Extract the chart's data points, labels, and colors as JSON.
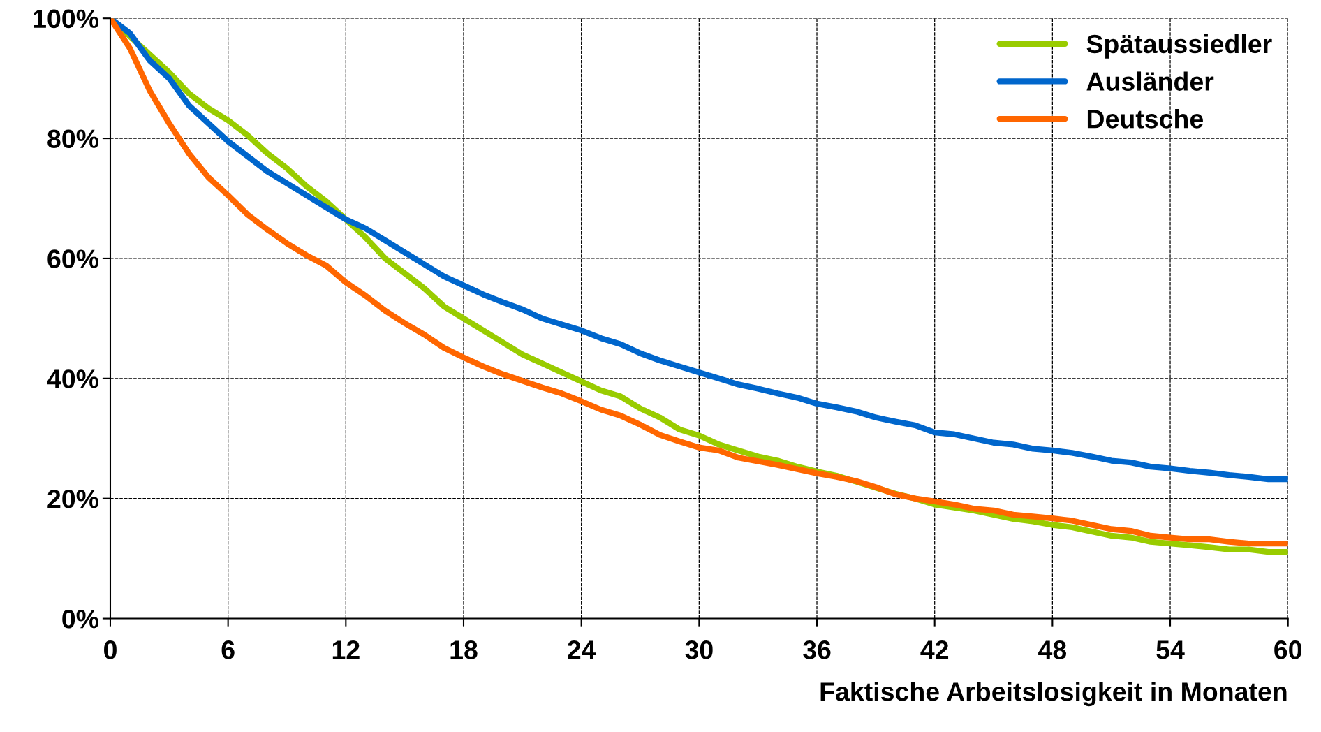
{
  "chart_data": {
    "type": "line",
    "xlabel": "Faktische Arbeitslosigkeit in Monaten",
    "x": [
      0,
      1,
      2,
      3,
      4,
      5,
      6,
      7,
      8,
      9,
      10,
      11,
      12,
      13,
      14,
      15,
      16,
      17,
      18,
      19,
      20,
      21,
      22,
      23,
      24,
      25,
      26,
      27,
      28,
      29,
      30,
      31,
      32,
      33,
      34,
      35,
      36,
      37,
      38,
      39,
      40,
      41,
      42,
      43,
      44,
      45,
      46,
      47,
      48,
      49,
      50,
      51,
      52,
      53,
      54,
      55,
      56,
      57,
      58,
      59,
      60
    ],
    "series": [
      {
        "name": "Spätaussiedler",
        "color": "#99cc00",
        "values": [
          100,
          97,
          94,
          91,
          87.5,
          85,
          83,
          80.5,
          77.5,
          75,
          72,
          69.5,
          66.5,
          63.5,
          60,
          57.5,
          55,
          52,
          50,
          48,
          46,
          44,
          42.5,
          41,
          39.5,
          38,
          37,
          35,
          33.5,
          31.5,
          30.5,
          29,
          28,
          27,
          26.3,
          25.3,
          24.5,
          23.8,
          22.8,
          21.8,
          20.8,
          20,
          19,
          18.5,
          18,
          17.3,
          16.6,
          16.2,
          15.6,
          15.2,
          14.5,
          13.8,
          13.5,
          12.8,
          12.5,
          12.2,
          11.9,
          11.5,
          11.5,
          11.1,
          11.1
        ]
      },
      {
        "name": "Ausländer",
        "color": "#0066cc",
        "values": [
          100,
          97.5,
          93,
          90,
          85.5,
          82.5,
          79.5,
          77,
          74.5,
          72.5,
          70.5,
          68.5,
          66.5,
          65,
          63,
          61,
          59,
          57,
          55.5,
          54,
          52.7,
          51.5,
          50,
          49,
          48,
          46.7,
          45.7,
          44.2,
          43,
          42,
          41,
          40,
          39,
          38.3,
          37.5,
          36.8,
          35.8,
          35.2,
          34.5,
          33.5,
          32.8,
          32.2,
          31,
          30.7,
          30,
          29.3,
          29,
          28.3,
          28,
          27.6,
          27,
          26.3,
          26,
          25.3,
          25,
          24.6,
          24.3,
          23.9,
          23.6,
          23.2,
          23.2
        ]
      },
      {
        "name": "Deutsche",
        "color": "#ff6600",
        "values": [
          100,
          95,
          88,
          82.5,
          77.5,
          73.5,
          70.5,
          67.3,
          64.8,
          62.5,
          60.5,
          58.8,
          56,
          53.8,
          51.3,
          49.2,
          47.3,
          45.1,
          43.5,
          42,
          40.7,
          39.6,
          38.5,
          37.5,
          36.2,
          34.8,
          33.8,
          32.3,
          30.6,
          29.5,
          28.5,
          28,
          26.8,
          26.2,
          25.6,
          24.9,
          24.2,
          23.6,
          22.9,
          21.9,
          20.7,
          20,
          19.5,
          19,
          18.3,
          18,
          17.3,
          17,
          16.7,
          16.3,
          15.6,
          14.9,
          14.6,
          13.8,
          13.5,
          13.2,
          13.2,
          12.8,
          12.5,
          12.5,
          12.5
        ]
      }
    ],
    "xlim": [
      0,
      60
    ],
    "xticks": [
      0,
      6,
      12,
      18,
      24,
      30,
      36,
      42,
      48,
      54,
      60
    ],
    "ylim": [
      0,
      100
    ],
    "yticks": [
      {
        "value": 0,
        "label": "0%"
      },
      {
        "value": 20,
        "label": "20%"
      },
      {
        "value": 40,
        "label": "40%"
      },
      {
        "value": 60,
        "label": "60%"
      },
      {
        "value": 80,
        "label": "80%"
      },
      {
        "value": 100,
        "label": "100%"
      }
    ],
    "grid": true,
    "legend": "top right",
    "line_style": "solid",
    "marker": "none"
  }
}
